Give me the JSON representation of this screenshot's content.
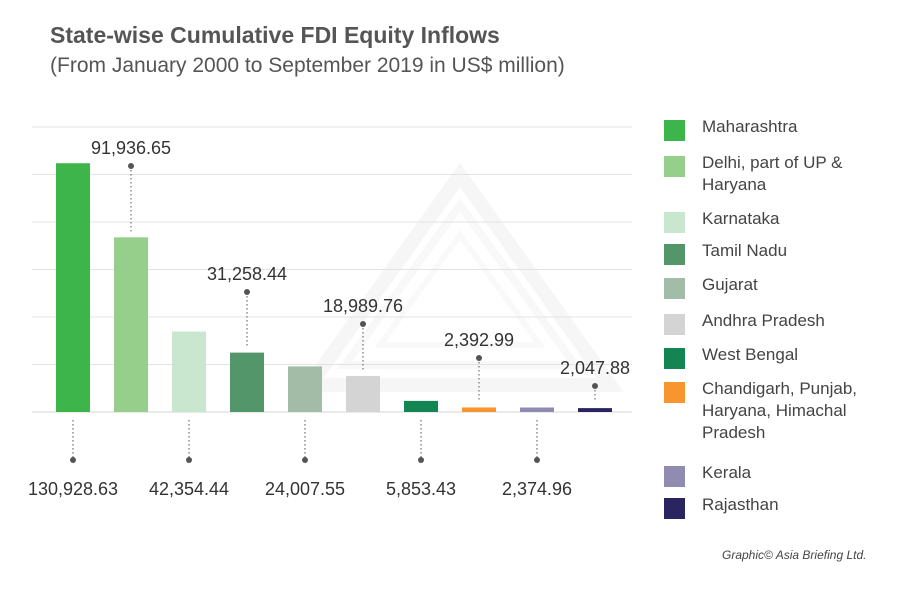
{
  "title": "State-wise Cumulative FDI Equity Inflows",
  "subtitle": "(From January 2000 to September 2019 in US$ million)",
  "credit": "Graphic© Asia Briefing Ltd.",
  "chart_data": {
    "type": "bar",
    "categories": [
      "Maharashtra",
      "Delhi, part of UP & Haryana",
      "Karnataka",
      "Tamil Nadu",
      "Gujarat",
      "Andhra Pradesh",
      "West Bengal",
      "Chandigarh, Punjab, Haryana, Himachal Pradesh",
      "Kerala",
      "Rajasthan"
    ],
    "values": [
      130928.63,
      91936.65,
      42354.44,
      31258.44,
      24007.55,
      18989.76,
      5853.43,
      2392.99,
      2374.96,
      2047.88
    ],
    "value_labels": [
      "130,928.63",
      "91,936.65",
      "42,354.44",
      "31,258.44",
      "24,007.55",
      "18,989.76",
      "5,853.43",
      "2,392.99",
      "2,374.96",
      "2,047.88"
    ],
    "label_positions": [
      "below",
      "above",
      "below",
      "above",
      "below",
      "above",
      "below",
      "above",
      "below",
      "above"
    ],
    "colors": [
      "#3db54a",
      "#95cf8b",
      "#c9e7cf",
      "#53966a",
      "#a2bca8",
      "#d4d4d4",
      "#128553",
      "#f7962f",
      "#8f8bb1",
      "#2a2560"
    ],
    "ylim": [
      0,
      150000
    ],
    "grid": true,
    "legend_position": "right"
  }
}
